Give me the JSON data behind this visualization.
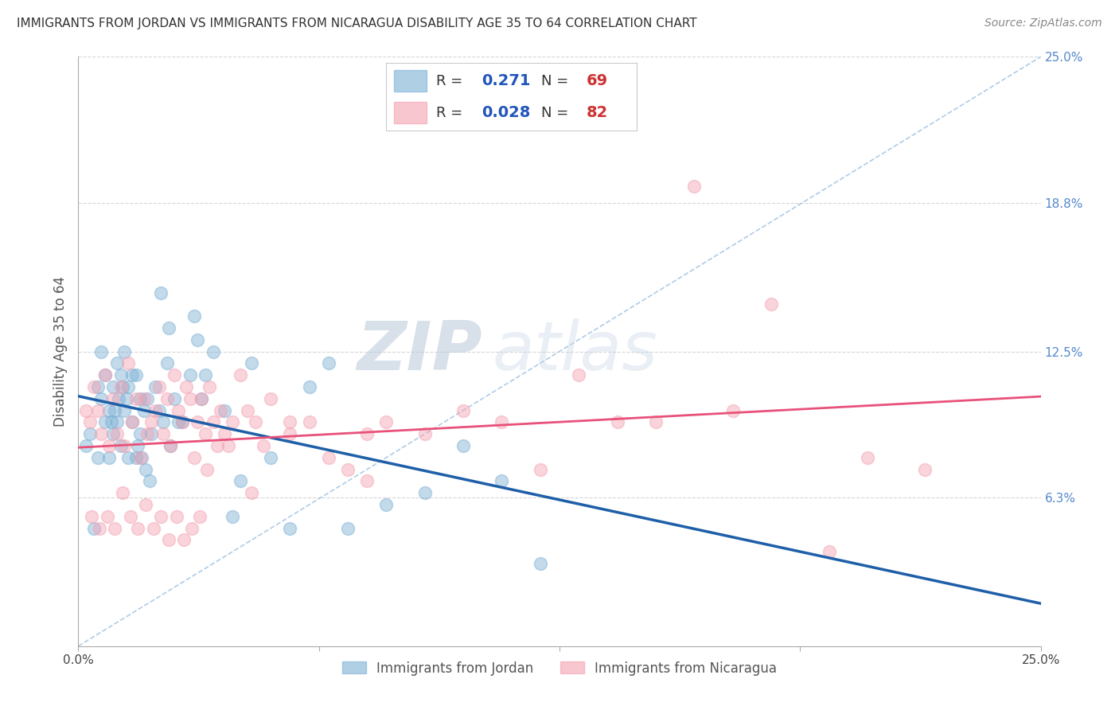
{
  "title": "IMMIGRANTS FROM JORDAN VS IMMIGRANTS FROM NICARAGUA DISABILITY AGE 35 TO 64 CORRELATION CHART",
  "source": "Source: ZipAtlas.com",
  "ylabel": "Disability Age 35 to 64",
  "xlim": [
    0.0,
    25.0
  ],
  "ylim": [
    0.0,
    25.0
  ],
  "y_tick_values_right": [
    6.3,
    12.5,
    18.8,
    25.0
  ],
  "y_tick_labels_right": [
    "6.3%",
    "12.5%",
    "18.8%",
    "25.0%"
  ],
  "jordan_R": 0.271,
  "jordan_N": 69,
  "nicaragua_R": 0.028,
  "nicaragua_N": 82,
  "jordan_color": "#7BAFD4",
  "nicaragua_color": "#F4A0B0",
  "jordan_trend_color": "#1E5FA8",
  "nicaragua_trend_color": "#E8517A",
  "diag_line_color": "#9BBFE0",
  "grid_color": "#CCCCCC",
  "background_color": "#FFFFFF",
  "watermark_zip": "ZIP",
  "watermark_atlas": "atlas",
  "jordan_x": [
    0.2,
    0.3,
    0.4,
    0.5,
    0.5,
    0.6,
    0.6,
    0.7,
    0.7,
    0.8,
    0.8,
    0.9,
    0.9,
    1.0,
    1.0,
    1.1,
    1.1,
    1.2,
    1.2,
    1.3,
    1.3,
    1.4,
    1.4,
    1.5,
    1.5,
    1.6,
    1.7,
    1.8,
    1.9,
    2.0,
    2.1,
    2.2,
    2.3,
    2.5,
    2.7,
    2.9,
    3.1,
    3.3,
    3.5,
    3.8,
    4.0,
    4.2,
    4.5,
    5.0,
    5.5,
    6.0,
    6.5,
    7.0,
    8.0,
    9.0,
    10.0,
    11.0,
    12.0,
    3.0,
    2.6,
    2.4,
    1.6,
    0.85,
    0.95,
    1.05,
    1.15,
    1.25,
    1.55,
    1.65,
    1.75,
    1.85,
    2.15,
    2.35,
    3.2
  ],
  "jordan_y": [
    8.5,
    9.0,
    5.0,
    8.0,
    11.0,
    10.5,
    12.5,
    9.5,
    11.5,
    8.0,
    10.0,
    9.0,
    11.0,
    9.5,
    12.0,
    8.5,
    11.5,
    10.0,
    12.5,
    8.0,
    11.0,
    9.5,
    11.5,
    8.0,
    11.5,
    10.5,
    10.0,
    10.5,
    9.0,
    11.0,
    10.0,
    9.5,
    12.0,
    10.5,
    9.5,
    11.5,
    13.0,
    11.5,
    12.5,
    10.0,
    5.5,
    7.0,
    12.0,
    8.0,
    5.0,
    11.0,
    12.0,
    5.0,
    6.0,
    6.5,
    8.5,
    7.0,
    3.5,
    14.0,
    9.5,
    8.5,
    9.0,
    9.5,
    10.0,
    10.5,
    11.0,
    10.5,
    8.5,
    8.0,
    7.5,
    7.0,
    15.0,
    13.5,
    10.5
  ],
  "nicaragua_x": [
    0.2,
    0.3,
    0.4,
    0.5,
    0.6,
    0.7,
    0.8,
    0.9,
    1.0,
    1.1,
    1.2,
    1.3,
    1.4,
    1.5,
    1.6,
    1.7,
    1.8,
    1.9,
    2.0,
    2.1,
    2.2,
    2.3,
    2.4,
    2.5,
    2.6,
    2.7,
    2.8,
    2.9,
    3.0,
    3.1,
    3.2,
    3.3,
    3.4,
    3.5,
    3.6,
    3.7,
    3.8,
    3.9,
    4.0,
    4.2,
    4.4,
    4.6,
    4.8,
    5.0,
    5.5,
    6.0,
    6.5,
    7.0,
    7.5,
    8.0,
    9.0,
    10.0,
    11.0,
    12.0,
    13.0,
    14.0,
    15.0,
    16.0,
    17.0,
    18.0,
    19.5,
    20.5,
    0.35,
    0.55,
    0.75,
    0.95,
    1.15,
    1.35,
    1.55,
    1.75,
    1.95,
    2.15,
    2.35,
    2.55,
    2.75,
    2.95,
    3.15,
    3.35,
    4.5,
    5.5,
    7.5,
    22.0
  ],
  "nicaragua_y": [
    10.0,
    9.5,
    11.0,
    10.0,
    9.0,
    11.5,
    8.5,
    10.5,
    9.0,
    11.0,
    8.5,
    12.0,
    9.5,
    10.5,
    8.0,
    10.5,
    9.0,
    9.5,
    10.0,
    11.0,
    9.0,
    10.5,
    8.5,
    11.5,
    10.0,
    9.5,
    11.0,
    10.5,
    8.0,
    9.5,
    10.5,
    9.0,
    11.0,
    9.5,
    8.5,
    10.0,
    9.0,
    8.5,
    9.5,
    11.5,
    10.0,
    9.5,
    8.5,
    10.5,
    9.0,
    9.5,
    8.0,
    7.5,
    9.0,
    9.5,
    9.0,
    10.0,
    9.5,
    7.5,
    11.5,
    9.5,
    9.5,
    19.5,
    10.0,
    14.5,
    4.0,
    8.0,
    5.5,
    5.0,
    5.5,
    5.0,
    6.5,
    5.5,
    5.0,
    6.0,
    5.0,
    5.5,
    4.5,
    5.5,
    4.5,
    5.0,
    5.5,
    7.5,
    6.5,
    9.5,
    7.0,
    7.5
  ]
}
